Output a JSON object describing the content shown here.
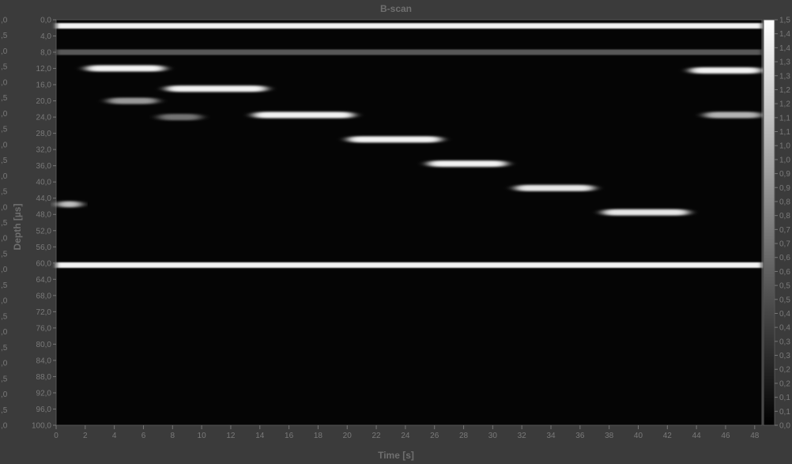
{
  "chart_data": {
    "type": "heatmap",
    "title": "B-scan",
    "xlabel": "Time [s]",
    "ylabel": "Depth [µs]",
    "xlim": [
      0,
      48.5
    ],
    "ylim": [
      0,
      100
    ],
    "x_ticks": [
      "0",
      "2",
      "4",
      "6",
      "8",
      "10",
      "12",
      "14",
      "16",
      "18",
      "20",
      "22",
      "24",
      "26",
      "28",
      "30",
      "32",
      "34",
      "36",
      "38",
      "40",
      "42",
      "44",
      "46",
      "48"
    ],
    "y_ticks": [
      "0,0",
      "4,0",
      "8,0",
      "12,0",
      "16,0",
      "20,0",
      "24,0",
      "28,0",
      "32,0",
      "36,0",
      "40,0",
      "44,0",
      "48,0",
      "52,0",
      "56,0",
      "60,0",
      "64,0",
      "68,0",
      "72,0",
      "76,0",
      "80,0",
      "84,0",
      "88,0",
      "92,0",
      "96,0",
      "100,0"
    ],
    "left_ticks": [
      ",0",
      ",5",
      ",0",
      ",5",
      ",0",
      ",5",
      ",0",
      ",5",
      ",0",
      ",5",
      ",0",
      ",5",
      ",0",
      ",5",
      ",0",
      ",5",
      ",0",
      ",5",
      ",0",
      ",5",
      ",0",
      ",5",
      ",0",
      ",5",
      ",0",
      ",5",
      ",0"
    ],
    "colorbar": {
      "min": 0.0,
      "max": 1.5,
      "ticks": [
        "1,5",
        "1,4",
        "1,4",
        "1,3",
        "1,3",
        "1,2",
        "1,2",
        "1,1",
        "1,1",
        "1,0",
        "1,0",
        "0,9",
        "0,9",
        "0,8",
        "0,8",
        "0,7",
        "0,7",
        "0,6",
        "0,6",
        "0,5",
        "0,5",
        "0,4",
        "0,4",
        "0,3",
        "0,3",
        "0,2",
        "0,2",
        "0,1",
        "0,1",
        "0,0"
      ],
      "colormap": "grayscale"
    },
    "reflectors": [
      {
        "depth": 1.5,
        "t_start": 0,
        "t_end": 48.5,
        "intensity": 0.95
      },
      {
        "depth": 8.0,
        "t_start": 0,
        "t_end": 48.5,
        "intensity": 0.35
      },
      {
        "depth": 12.0,
        "t_start": 2.0,
        "t_end": 7.5,
        "intensity": 0.95
      },
      {
        "depth": 17.0,
        "t_start": 7.5,
        "t_end": 14.5,
        "intensity": 0.95
      },
      {
        "depth": 20.0,
        "t_start": 3.5,
        "t_end": 7.0,
        "intensity": 0.6
      },
      {
        "depth": 23.5,
        "t_start": 13.5,
        "t_end": 20.5,
        "intensity": 0.95
      },
      {
        "depth": 24.0,
        "t_start": 7.0,
        "t_end": 10.0,
        "intensity": 0.45
      },
      {
        "depth": 29.5,
        "t_start": 20.0,
        "t_end": 26.5,
        "intensity": 0.95
      },
      {
        "depth": 35.5,
        "t_start": 25.5,
        "t_end": 31.0,
        "intensity": 0.95
      },
      {
        "depth": 41.5,
        "t_start": 31.5,
        "t_end": 37.0,
        "intensity": 0.9
      },
      {
        "depth": 47.5,
        "t_start": 37.5,
        "t_end": 43.5,
        "intensity": 0.9
      },
      {
        "depth": 45.5,
        "t_start": 0,
        "t_end": 1.8,
        "intensity": 0.75
      },
      {
        "depth": 12.5,
        "t_start": 43.5,
        "t_end": 48.5,
        "intensity": 0.95
      },
      {
        "depth": 23.5,
        "t_start": 44.5,
        "t_end": 48.5,
        "intensity": 0.7
      },
      {
        "depth": 60.5,
        "t_start": 0,
        "t_end": 48.5,
        "intensity": 0.95
      }
    ]
  }
}
